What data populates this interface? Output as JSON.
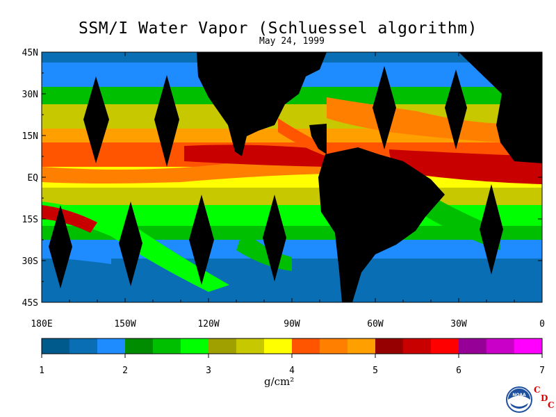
{
  "title": "SSM/I Water Vapor (Schluessel algorithm)",
  "date": "May 24, 1999",
  "lat_labels": [
    "45N",
    "30N",
    "15N",
    "EQ",
    "15S",
    "30S",
    "45S"
  ],
  "lon_labels": [
    "180E",
    "150W",
    "120W",
    "90W",
    "60W",
    "30W",
    "0"
  ],
  "colorbar": {
    "tick_labels": [
      "1",
      "2",
      "3",
      "4",
      "5",
      "6",
      "7"
    ],
    "units": "g/cm²",
    "colors": [
      "#005a8c",
      "#0a6eb4",
      "#1e8cff",
      "#008c00",
      "#00be00",
      "#00ff00",
      "#a0a000",
      "#c8c800",
      "#ffff00",
      "#ff5500",
      "#ff7f00",
      "#ffa000",
      "#960000",
      "#c80000",
      "#ff0000",
      "#960096",
      "#c800c8",
      "#ff00ff"
    ]
  },
  "logo": {
    "text": "NOAA",
    "letters": [
      "C",
      "D",
      "C"
    ]
  }
}
